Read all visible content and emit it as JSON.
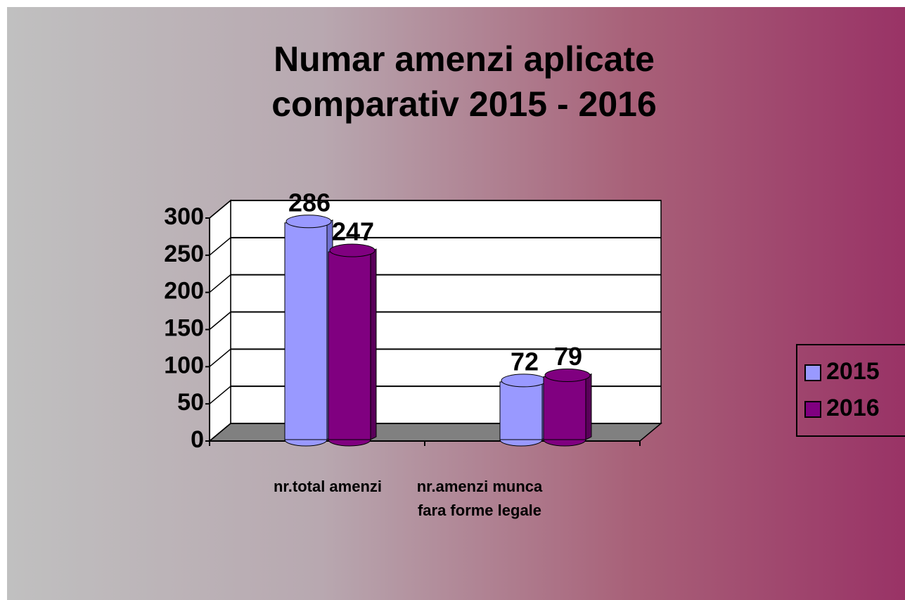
{
  "chart_data": {
    "type": "bar",
    "title": "Numar amenzi aplicate comparativ 2015 - 2016",
    "categories": [
      "nr.total amenzi",
      "nr.amenzi munca fara forme legale"
    ],
    "series": [
      {
        "name": "2015",
        "color": "#9999ff",
        "values": [
          286,
          72
        ]
      },
      {
        "name": "2016",
        "color": "#800080",
        "values": [
          247,
          79
        ]
      }
    ],
    "ylim": [
      0,
      300
    ],
    "yticks": [
      0,
      50,
      100,
      150,
      200,
      250,
      300
    ],
    "grid": true,
    "legend": "right"
  }
}
